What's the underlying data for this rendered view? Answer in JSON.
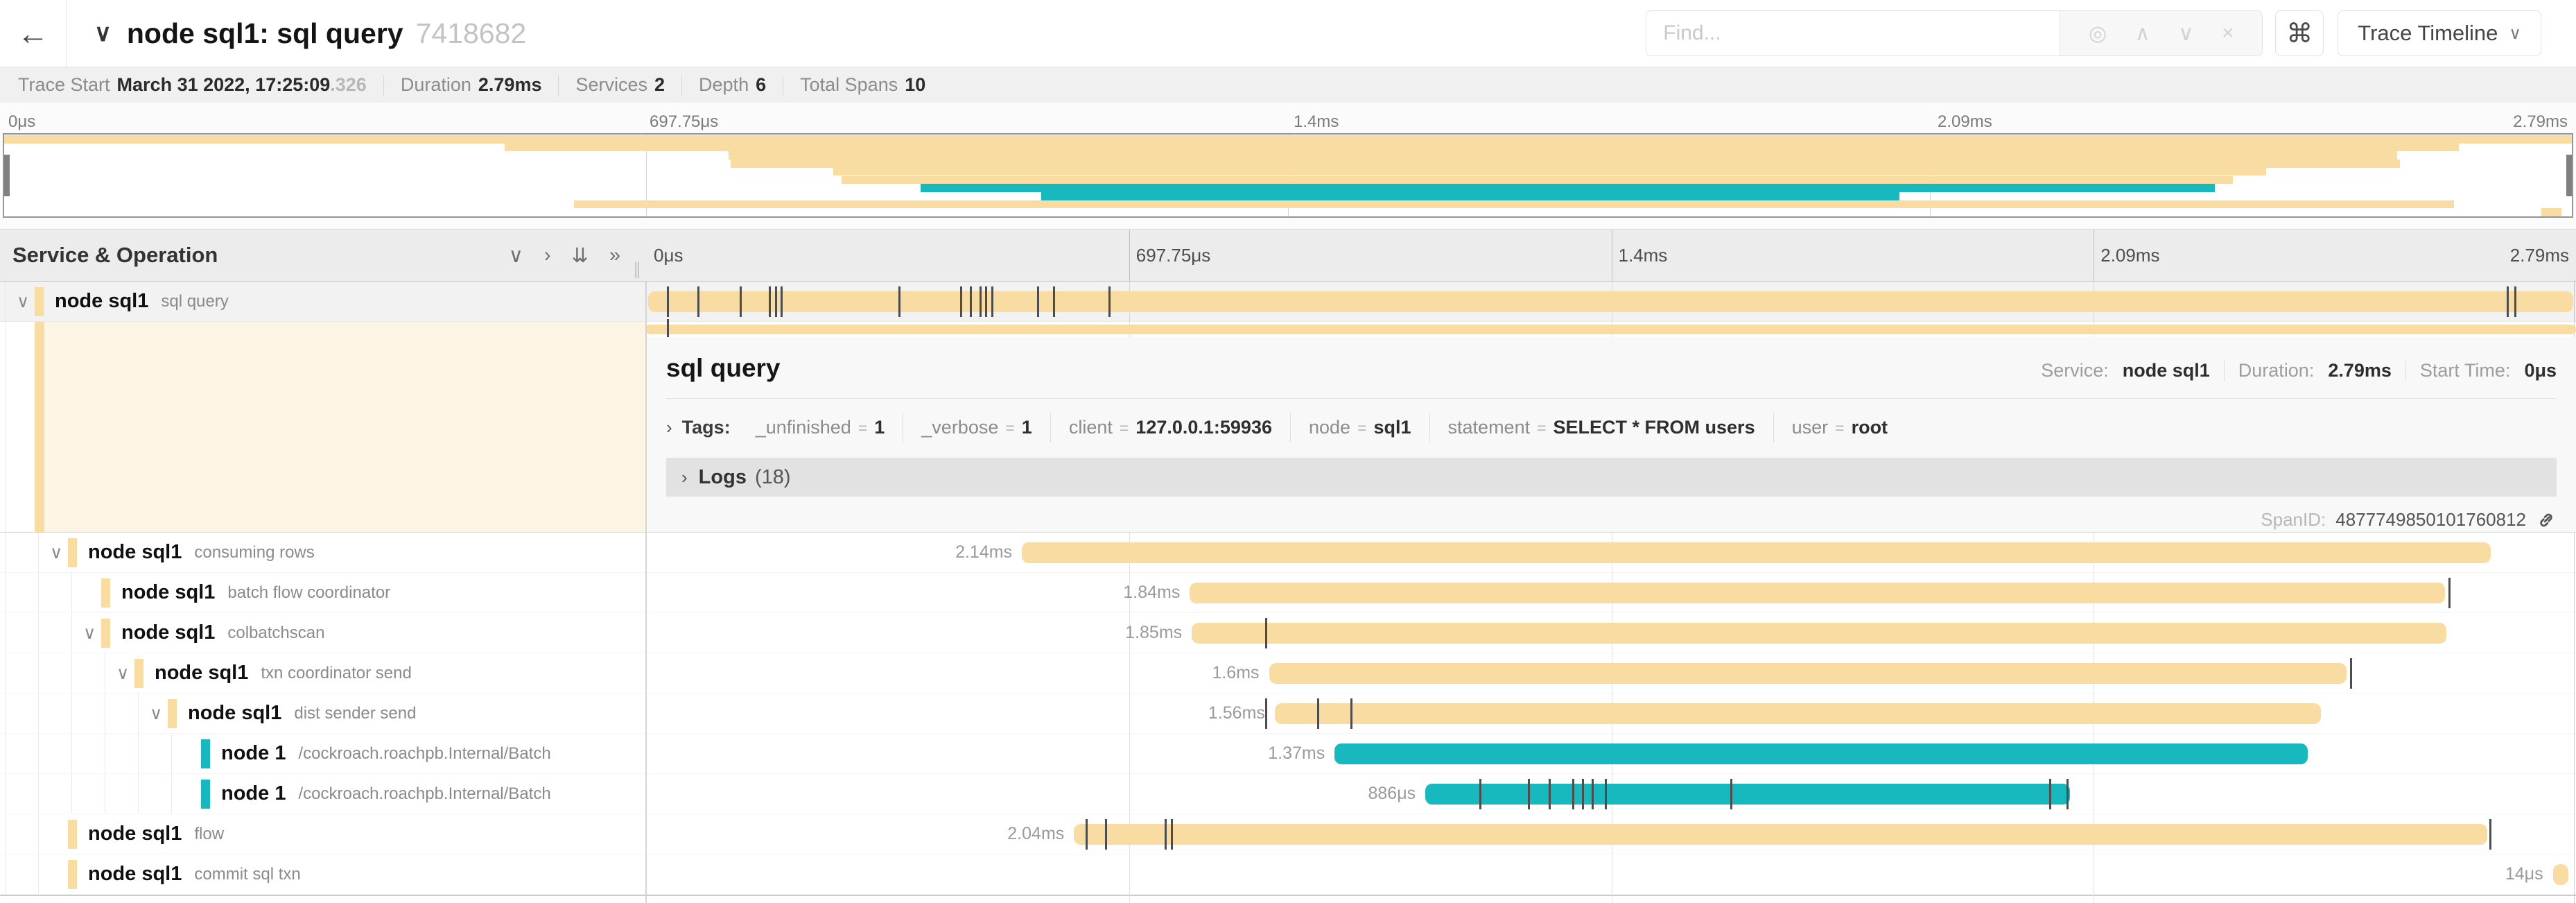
{
  "colors": {
    "tan": "#F8DCA1",
    "teal": "#17B8BE",
    "cream": "#FCF5E6"
  },
  "header": {
    "back_icon": "←",
    "collapse_icon": "∨",
    "title": "node sql1: sql query",
    "trace_id": "7418682",
    "find_placeholder": "Find...",
    "locate_icon": "◎",
    "prev_icon": "∧",
    "next_icon": "∨",
    "clear_icon": "×",
    "shortcuts_icon": "⌘",
    "view_label": "Trace Timeline",
    "view_chevron": "∨"
  },
  "stats": {
    "trace_start_label": "Trace Start",
    "trace_start_value": "March 31 2022, 17:25:09",
    "trace_start_fraction": ".326",
    "duration_label": "Duration",
    "duration_value": "2.79ms",
    "services_label": "Services",
    "services_value": "2",
    "depth_label": "Depth",
    "depth_value": "6",
    "spans_label": "Total Spans",
    "spans_value": "10"
  },
  "minimap": {
    "ticks": [
      "0μs",
      "697.75μs",
      "1.4ms",
      "2.09ms",
      "2.79ms"
    ],
    "rows": [
      {
        "start": 0,
        "end": 100,
        "color": "tan"
      },
      {
        "start": 19.5,
        "end": 95.6,
        "color": "tan"
      },
      {
        "start": 28.2,
        "end": 93.2,
        "color": "tan"
      },
      {
        "start": 28.3,
        "end": 93.3,
        "color": "tan"
      },
      {
        "start": 32.3,
        "end": 88.1,
        "color": "tan"
      },
      {
        "start": 32.6,
        "end": 86.8,
        "color": "tan"
      },
      {
        "start": 35.7,
        "end": 86.1,
        "color": "teal"
      },
      {
        "start": 40.4,
        "end": 73.8,
        "color": "teal"
      },
      {
        "start": 22.2,
        "end": 95.4,
        "color": "tan"
      },
      {
        "start": 98.8,
        "end": 99.6,
        "color": "tan"
      }
    ]
  },
  "timeline": {
    "ticks": [
      "0μs",
      "697.75μs",
      "1.4ms",
      "2.09ms",
      "2.79ms"
    ]
  },
  "tree_header": {
    "title": "Service & Operation",
    "collapse_one_icon": "∨",
    "expand_one_icon": "›",
    "collapse_all_icon": "⇊",
    "expand_all_icon": "»",
    "resizer_icon": "∥"
  },
  "icons": {
    "row_chevron": "∨"
  },
  "selected_span": {
    "service": "node sql1",
    "operation": "sql query",
    "bar": {
      "start": 0,
      "end": 100,
      "color": "tan",
      "ticks": [
        1.1,
        2.7,
        4.9,
        6.4,
        6.7,
        7.0,
        13.1,
        16.3,
        16.8,
        17.3,
        17.6,
        17.9,
        20.3,
        21.1,
        24.0,
        96.4,
        96.8
      ]
    },
    "strip_ticks": [
      1.1
    ]
  },
  "detail": {
    "title": "sql query",
    "service_label": "Service:",
    "service_value": "node sql1",
    "duration_label": "Duration:",
    "duration_value": "2.79ms",
    "start_label": "Start Time:",
    "start_value": "0μs",
    "tags_chevron": "›",
    "tags_label": "Tags:",
    "tags": [
      {
        "key": "_unfinished",
        "value": "1"
      },
      {
        "key": "_verbose",
        "value": "1"
      },
      {
        "key": "client",
        "value": "127.0.0.1:59936"
      },
      {
        "key": "node",
        "value": "sql1"
      },
      {
        "key": "statement",
        "value": "SELECT * FROM users"
      },
      {
        "key": "user",
        "value": "root"
      }
    ],
    "logs_chevron": "›",
    "logs_label": "Logs",
    "logs_count": "(18)",
    "span_id_label": "SpanID:",
    "span_id_value": "4877749850101760812"
  },
  "spans": {
    "rows": [
      {
        "service": "node sql1",
        "operation": "consuming rows",
        "depth": 1,
        "color": "tan",
        "expandable": true,
        "label": "2.14ms",
        "start": 19.5,
        "end": 95.6,
        "ticks": []
      },
      {
        "service": "node sql1",
        "operation": "batch flow coordinator",
        "depth": 2,
        "color": "tan",
        "expandable": false,
        "label": "1.84ms",
        "start": 28.2,
        "end": 93.2,
        "ticks": [
          93.4
        ]
      },
      {
        "service": "node sql1",
        "operation": "colbatchscan",
        "depth": 2,
        "color": "tan",
        "expandable": true,
        "label": "1.85ms",
        "start": 28.3,
        "end": 93.3,
        "ticks": [
          32.1
        ]
      },
      {
        "service": "node sql1",
        "operation": "txn coordinator send",
        "depth": 3,
        "color": "tan",
        "expandable": true,
        "label": "1.6ms",
        "start": 32.3,
        "end": 88.1,
        "ticks": [
          88.3
        ]
      },
      {
        "service": "node sql1",
        "operation": "dist sender send",
        "depth": 4,
        "color": "tan",
        "expandable": true,
        "label": "1.56ms",
        "start": 32.6,
        "end": 86.8,
        "ticks": [
          32.1,
          34.8,
          36.5
        ]
      },
      {
        "service": "node 1",
        "operation": "/cockroach.roachpb.Internal/Batch",
        "depth": 5,
        "color": "teal",
        "expandable": false,
        "label": "1.37ms",
        "start": 35.7,
        "end": 86.1,
        "ticks": []
      },
      {
        "service": "node 1",
        "operation": "/cockroach.roachpb.Internal/Batch",
        "depth": 5,
        "color": "teal",
        "expandable": false,
        "label": "886μs",
        "start": 40.4,
        "end": 73.8,
        "ticks": [
          43.2,
          45.7,
          46.8,
          48.0,
          48.5,
          49.0,
          49.7,
          56.2,
          72.7,
          73.6
        ]
      },
      {
        "service": "node sql1",
        "operation": "flow",
        "depth": 1,
        "color": "tan",
        "expandable": false,
        "label": "2.04ms",
        "start": 22.2,
        "end": 95.4,
        "ticks": [
          22.8,
          23.8,
          26.9,
          27.2,
          95.5
        ]
      },
      {
        "service": "node sql1",
        "operation": "commit sql txn",
        "depth": 1,
        "color": "tan",
        "expandable": false,
        "label": "14μs",
        "start": 98.8,
        "end": 99.6,
        "ticks": []
      }
    ]
  }
}
